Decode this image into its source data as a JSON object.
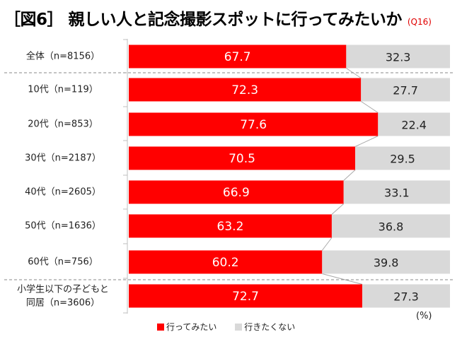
{
  "title": "［図6］ 親しい人と記念撮影スポットに行ってみたいか",
  "question_note": "(Q16)",
  "unit_label": "(%)",
  "colors": {
    "series_a": "#ff0000",
    "series_b": "#d9d9d9",
    "divider": "#8a8a8a",
    "connector": "#aaaaaa"
  },
  "chart_data": {
    "type": "bar",
    "orientation": "horizontal",
    "stacked": true,
    "percent_scale": [
      0,
      100
    ],
    "categories": [
      "全体（n=8156）",
      "10代（n=119）",
      "20代（n=853）",
      "30代（n=2187）",
      "40代（n=2605）",
      "50代（n=1636）",
      "60代（n=756）",
      "小学生以下の子どもと同居（n=3606）"
    ],
    "category_lines": [
      [
        "全体（n=8156）"
      ],
      [
        "10代（n=119）"
      ],
      [
        "20代（n=853）"
      ],
      [
        "30代（n=2187）"
      ],
      [
        "40代（n=2605）"
      ],
      [
        "50代（n=1636）"
      ],
      [
        "60代（n=756）"
      ],
      [
        "小学生以下の子どもと",
        "同居（n=3606）"
      ]
    ],
    "series": [
      {
        "name": "行ってみたい",
        "values": [
          67.7,
          72.3,
          77.6,
          70.5,
          66.9,
          63.2,
          60.2,
          72.7
        ]
      },
      {
        "name": "行きたくない",
        "values": [
          32.3,
          27.7,
          22.4,
          29.5,
          33.1,
          36.8,
          39.8,
          27.3
        ]
      }
    ],
    "legend_position": "bottom",
    "gridlines": false
  }
}
